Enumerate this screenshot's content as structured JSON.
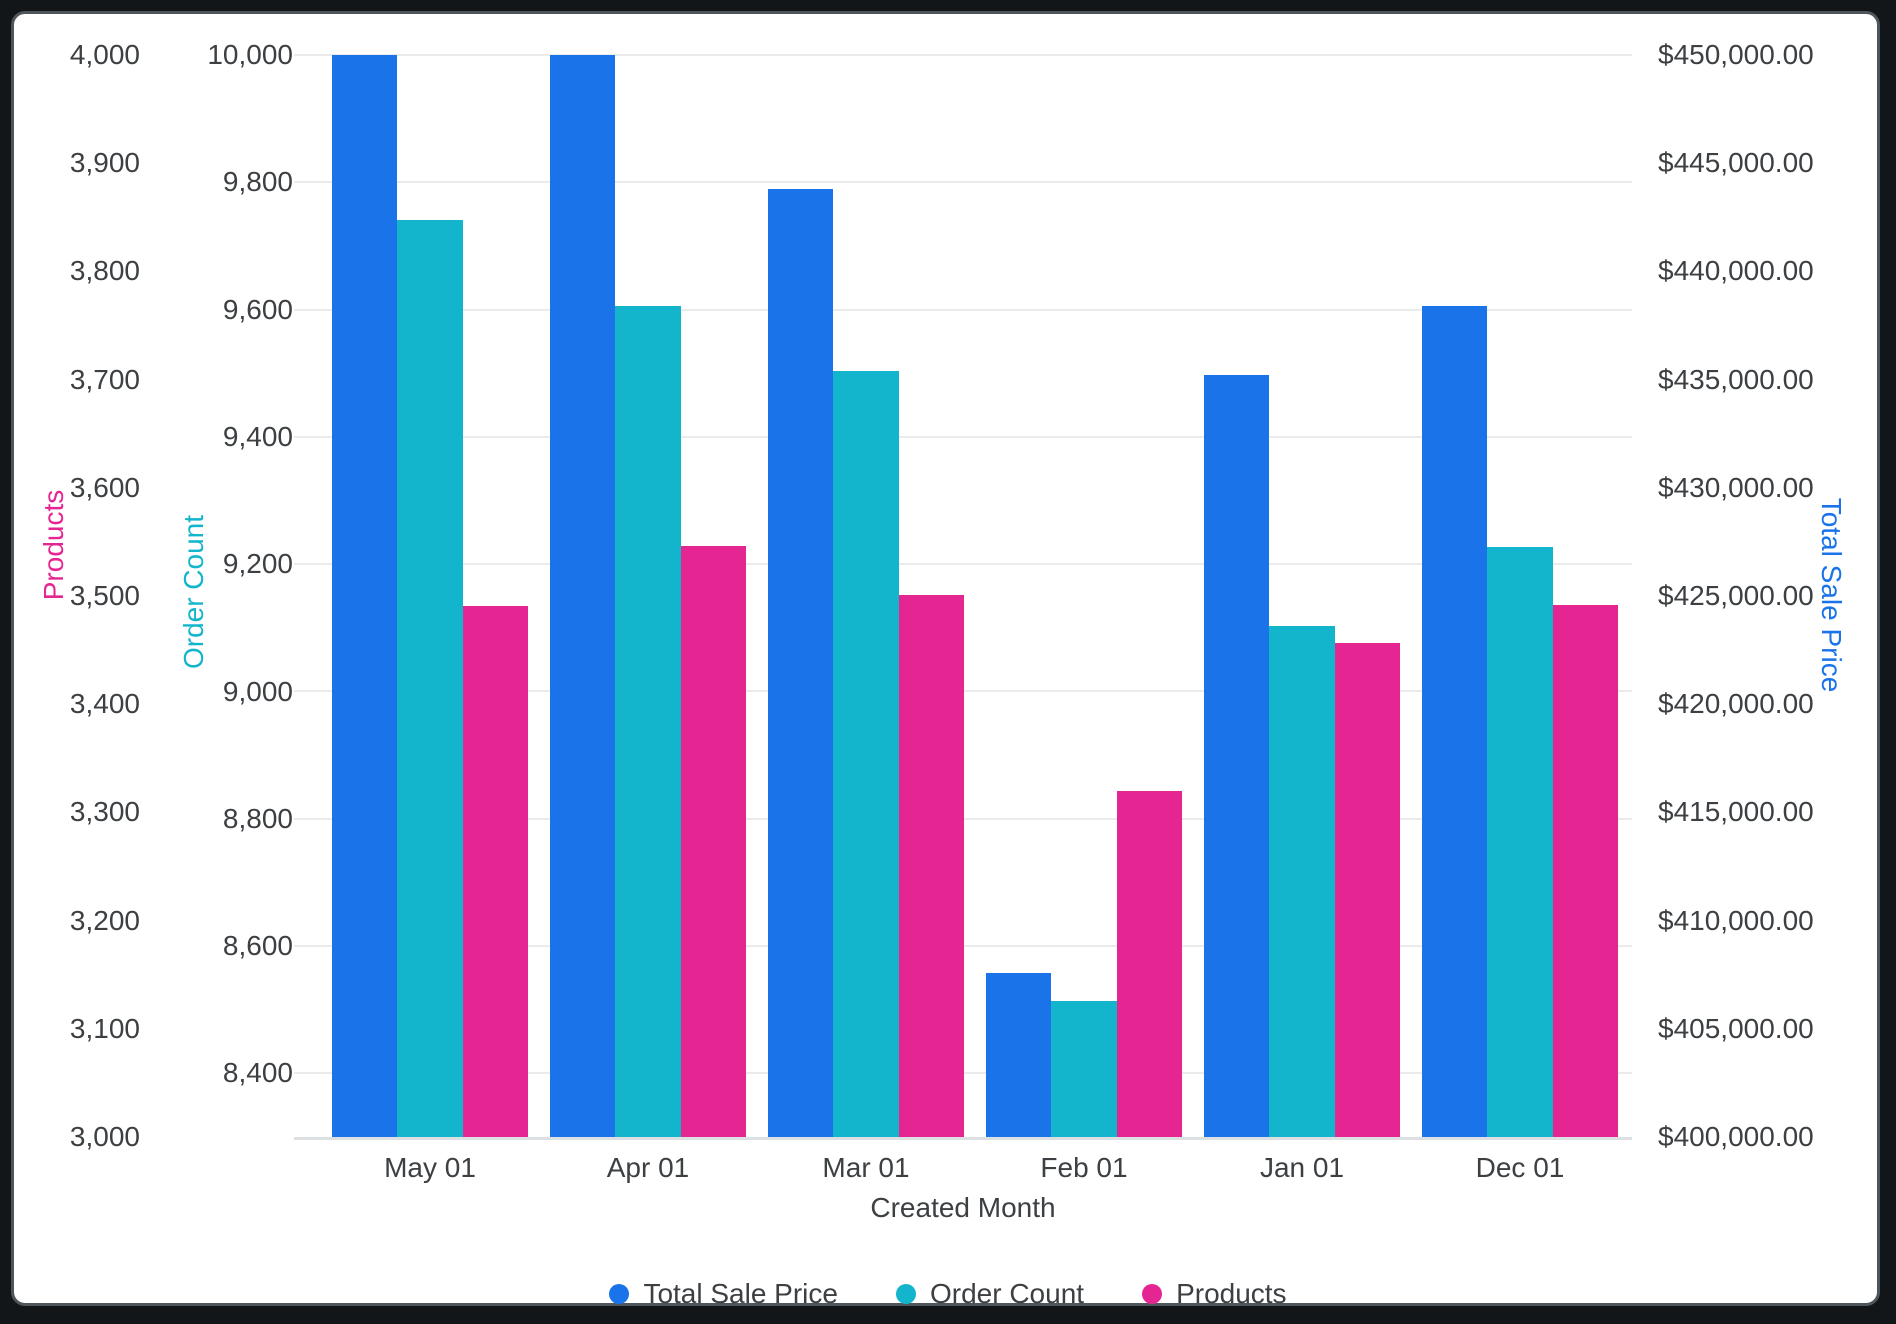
{
  "chart_data": {
    "type": "bar",
    "title": "",
    "xlabel": "Created Month",
    "categories": [
      "May 01",
      "Apr 01",
      "Mar 01",
      "Feb 01",
      "Jan 01",
      "Dec 01"
    ],
    "series": [
      {
        "name": "Total Sale Price",
        "axis": "sale",
        "color": "#1A73E8",
        "values": [
          450000,
          450000,
          443800,
          407600,
          435200,
          438400
        ]
      },
      {
        "name": "Order Count",
        "axis": "order_count",
        "color": "#12B5CB",
        "values": [
          9741,
          9606,
          9503,
          8513,
          9103,
          9227
        ]
      },
      {
        "name": "Products",
        "axis": "products",
        "color": "#E52592",
        "values": [
          3491,
          3546,
          3501,
          3320,
          3457,
          3492
        ]
      }
    ],
    "axes": {
      "products": {
        "title": "Products",
        "color": "#E52592",
        "min": 3000,
        "max": 4000,
        "ticks": [
          {
            "v": 4000,
            "label": "4,000"
          },
          {
            "v": 3900,
            "label": "3,900"
          },
          {
            "v": 3800,
            "label": "3,800"
          },
          {
            "v": 3700,
            "label": "3,700"
          },
          {
            "v": 3600,
            "label": "3,600"
          },
          {
            "v": 3500,
            "label": "3,500"
          },
          {
            "v": 3400,
            "label": "3,400"
          },
          {
            "v": 3300,
            "label": "3,300"
          },
          {
            "v": 3200,
            "label": "3,200"
          },
          {
            "v": 3100,
            "label": "3,100"
          },
          {
            "v": 3000,
            "label": "3,000"
          }
        ]
      },
      "order_count": {
        "title": "Order Count",
        "color": "#12B5CB",
        "min": 8300,
        "max": 10000,
        "gridlines": true,
        "ticks": [
          {
            "v": 10000,
            "label": "10,000"
          },
          {
            "v": 9800,
            "label": "9,800"
          },
          {
            "v": 9600,
            "label": "9,600"
          },
          {
            "v": 9400,
            "label": "9,400"
          },
          {
            "v": 9200,
            "label": "9,200"
          },
          {
            "v": 9000,
            "label": "9,000"
          },
          {
            "v": 8800,
            "label": "8,800"
          },
          {
            "v": 8600,
            "label": "8,600"
          },
          {
            "v": 8400,
            "label": "8,400"
          }
        ]
      },
      "sale": {
        "title": "Total Sale Price",
        "color": "#1A73E8",
        "min": 400000,
        "max": 450000,
        "ticks": [
          {
            "v": 450000,
            "label": "$450,000.00"
          },
          {
            "v": 445000,
            "label": "$445,000.00"
          },
          {
            "v": 440000,
            "label": "$440,000.00"
          },
          {
            "v": 435000,
            "label": "$435,000.00"
          },
          {
            "v": 430000,
            "label": "$430,000.00"
          },
          {
            "v": 425000,
            "label": "$425,000.00"
          },
          {
            "v": 420000,
            "label": "$420,000.00"
          },
          {
            "v": 415000,
            "label": "$415,000.00"
          },
          {
            "v": 410000,
            "label": "$410,000.00"
          },
          {
            "v": 405000,
            "label": "$405,000.00"
          },
          {
            "v": 400000,
            "label": "$400,000.00"
          }
        ]
      }
    },
    "legend_position": "bottom-center",
    "grid": true
  }
}
